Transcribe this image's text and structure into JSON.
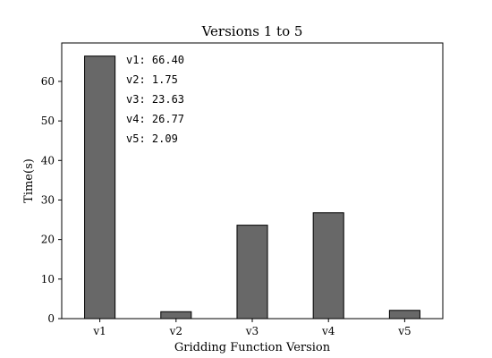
{
  "chart_data": {
    "type": "bar",
    "title": "Versions 1 to 5",
    "xlabel": "Gridding Function Version",
    "ylabel": "Time(s)",
    "categories": [
      "v1",
      "v2",
      "v3",
      "v4",
      "v5"
    ],
    "values": [
      66.4,
      1.75,
      23.63,
      26.77,
      2.09
    ],
    "ylim": [
      0,
      69.72
    ],
    "yticks": [
      0,
      10,
      20,
      30,
      40,
      50,
      60
    ],
    "grid": false,
    "annotations": [
      "v1: 66.40",
      "v2: 1.75",
      "v3: 23.63",
      "v4: 26.77",
      "v5: 2.09"
    ],
    "bar_color": "#686868",
    "edge_color": "#000000"
  }
}
